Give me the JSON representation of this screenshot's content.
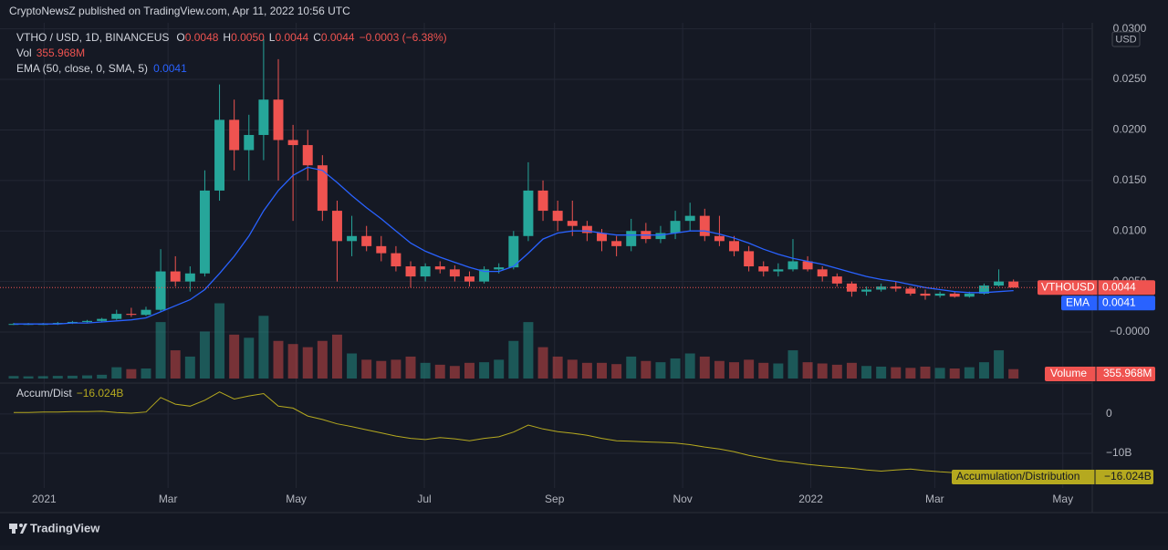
{
  "chart_data": {
    "type": "candlestick",
    "publisher": "CryptoNewsZ published on TradingView.com, Apr 11, 2022 10:56 UTC",
    "symbol": "VTHO / USD, 1D, BINANCEUS",
    "ohlc": [
      {
        "key": "O",
        "value": "0.0048"
      },
      {
        "key": "H",
        "value": "0.0050"
      },
      {
        "key": "L",
        "value": "0.0044"
      },
      {
        "key": "C",
        "value": "0.0044"
      }
    ],
    "change": "−0.0003 (−6.38%)",
    "currency": "USD",
    "price_tag": "VTHOUSD",
    "last_price": 0.0044,
    "brand": "TradingView",
    "up_color": "#26a69a",
    "down_color": "#ef5350",
    "grid": true,
    "xlim": [
      "2020-12-11",
      "2022-05-15"
    ],
    "xticks": [
      {
        "value": "2021-01-01",
        "label": "2021"
      },
      {
        "value": "2021-03-01",
        "label": "Mar"
      },
      {
        "value": "2021-05-01",
        "label": "May"
      },
      {
        "value": "2021-07-01",
        "label": "Jul"
      },
      {
        "value": "2021-09-01",
        "label": "Sep"
      },
      {
        "value": "2021-11-01",
        "label": "Nov"
      },
      {
        "value": "2022-01-01",
        "label": "2022"
      },
      {
        "value": "2022-03-01",
        "label": "Mar"
      },
      {
        "value": "2022-05-01",
        "label": "May"
      }
    ],
    "ylim": [
      -0.0046,
      0.0306
    ],
    "yticks": [
      {
        "value": 0.03,
        "label": "0.0300"
      },
      {
        "value": 0.025,
        "label": "0.0250"
      },
      {
        "value": 0.02,
        "label": "0.0200"
      },
      {
        "value": 0.015,
        "label": "0.0150"
      },
      {
        "value": 0.01,
        "label": "0.0100"
      },
      {
        "value": 0.005,
        "label": "0.0050"
      },
      {
        "value": 0,
        "label": "−0.0000"
      }
    ],
    "x": [
      "2020-12-14",
      "2020-12-21",
      "2020-12-28",
      "2021-01-04",
      "2021-01-11",
      "2021-01-18",
      "2021-01-25",
      "2021-02-01",
      "2021-02-08",
      "2021-02-15",
      "2021-02-22",
      "2021-03-01",
      "2021-03-08",
      "2021-03-15",
      "2021-03-22",
      "2021-03-29",
      "2021-04-05",
      "2021-04-12",
      "2021-04-19",
      "2021-04-26",
      "2021-05-03",
      "2021-05-10",
      "2021-05-17",
      "2021-05-24",
      "2021-05-31",
      "2021-06-07",
      "2021-06-14",
      "2021-06-21",
      "2021-06-28",
      "2021-07-05",
      "2021-07-12",
      "2021-07-19",
      "2021-07-26",
      "2021-08-02",
      "2021-08-09",
      "2021-08-16",
      "2021-08-23",
      "2021-08-30",
      "2021-09-06",
      "2021-09-13",
      "2021-09-20",
      "2021-09-27",
      "2021-10-04",
      "2021-10-11",
      "2021-10-18",
      "2021-10-25",
      "2021-11-01",
      "2021-11-08",
      "2021-11-15",
      "2021-11-22",
      "2021-11-29",
      "2021-12-06",
      "2021-12-13",
      "2021-12-20",
      "2021-12-27",
      "2022-01-03",
      "2022-01-10",
      "2022-01-17",
      "2022-01-24",
      "2022-01-31",
      "2022-02-07",
      "2022-02-14",
      "2022-02-21",
      "2022-02-28",
      "2022-03-07",
      "2022-03-14",
      "2022-03-21",
      "2022-03-28",
      "2022-04-04"
    ],
    "open": [
      0.0008,
      0.0008,
      0.0008,
      0.0008,
      0.0009,
      0.001,
      0.0011,
      0.0013,
      0.0018,
      0.0017,
      0.0022,
      0.006,
      0.005,
      0.0058,
      0.014,
      0.021,
      0.018,
      0.0195,
      0.023,
      0.019,
      0.0185,
      0.0165,
      0.012,
      0.009,
      0.0095,
      0.0085,
      0.0078,
      0.0065,
      0.0055,
      0.0065,
      0.0062,
      0.0055,
      0.005,
      0.0062,
      0.0064,
      0.0095,
      0.014,
      0.012,
      0.011,
      0.0105,
      0.0098,
      0.009,
      0.0085,
      0.01,
      0.0092,
      0.0098,
      0.011,
      0.0115,
      0.0095,
      0.009,
      0.008,
      0.0065,
      0.006,
      0.0062,
      0.007,
      0.0062,
      0.0055,
      0.0048,
      0.004,
      0.0042,
      0.0045,
      0.0043,
      0.0038,
      0.0036,
      0.0038,
      0.0035,
      0.0038,
      0.0046,
      0.005
    ],
    "high": [
      0.0009,
      0.0009,
      0.0009,
      0.001,
      0.0011,
      0.0012,
      0.0014,
      0.0022,
      0.0024,
      0.0025,
      0.0082,
      0.0075,
      0.0065,
      0.016,
      0.0245,
      0.023,
      0.0215,
      0.029,
      0.027,
      0.0205,
      0.02,
      0.0175,
      0.013,
      0.0115,
      0.0105,
      0.0095,
      0.0085,
      0.007,
      0.0068,
      0.007,
      0.0066,
      0.006,
      0.0065,
      0.0068,
      0.01,
      0.0168,
      0.015,
      0.013,
      0.013,
      0.011,
      0.0102,
      0.0095,
      0.0112,
      0.0108,
      0.0105,
      0.012,
      0.0128,
      0.0122,
      0.0115,
      0.0095,
      0.0085,
      0.007,
      0.0068,
      0.0092,
      0.0075,
      0.0065,
      0.0058,
      0.005,
      0.0045,
      0.0048,
      0.005,
      0.0045,
      0.0042,
      0.004,
      0.004,
      0.004,
      0.0048,
      0.0062,
      0.0052
    ],
    "low": [
      0.0007,
      0.0007,
      0.0007,
      0.0007,
      0.0008,
      0.0009,
      0.001,
      0.0012,
      0.0015,
      0.0016,
      0.002,
      0.0045,
      0.004,
      0.0055,
      0.013,
      0.016,
      0.015,
      0.017,
      0.015,
      0.011,
      0.015,
      0.011,
      0.005,
      0.0075,
      0.008,
      0.007,
      0.006,
      0.0044,
      0.005,
      0.0058,
      0.005,
      0.0045,
      0.0048,
      0.0058,
      0.0062,
      0.009,
      0.011,
      0.01,
      0.0095,
      0.009,
      0.008,
      0.0075,
      0.008,
      0.0088,
      0.0088,
      0.0092,
      0.01,
      0.009,
      0.0085,
      0.0075,
      0.006,
      0.0055,
      0.0055,
      0.006,
      0.006,
      0.005,
      0.0045,
      0.0035,
      0.0036,
      0.004,
      0.004,
      0.0036,
      0.0032,
      0.0034,
      0.0034,
      0.0034,
      0.0037,
      0.0045,
      0.0044
    ],
    "close": [
      0.0008,
      0.0008,
      0.0008,
      0.0009,
      0.001,
      0.0011,
      0.0013,
      0.0018,
      0.0017,
      0.0022,
      0.006,
      0.005,
      0.0058,
      0.014,
      0.021,
      0.018,
      0.0195,
      0.023,
      0.019,
      0.0185,
      0.0165,
      0.012,
      0.009,
      0.0095,
      0.0085,
      0.0078,
      0.0065,
      0.0055,
      0.0065,
      0.0062,
      0.0055,
      0.005,
      0.0062,
      0.0064,
      0.0095,
      0.014,
      0.012,
      0.011,
      0.0105,
      0.0098,
      0.009,
      0.0085,
      0.01,
      0.0092,
      0.0098,
      0.011,
      0.0115,
      0.0095,
      0.009,
      0.008,
      0.0065,
      0.006,
      0.0062,
      0.007,
      0.0062,
      0.0055,
      0.0048,
      0.004,
      0.0042,
      0.0045,
      0.0043,
      0.0038,
      0.0036,
      0.0038,
      0.0035,
      0.0038,
      0.0046,
      0.005,
      0.0044
    ],
    "volume": {
      "name": "Vol",
      "axis_tag": "Volume",
      "last": {
        "value": 355.968,
        "label": "355.968M"
      },
      "vlim": [
        0,
        16000
      ],
      "values": [
        400,
        350,
        380,
        420,
        450,
        500,
        600,
        1800,
        1500,
        1600,
        9000,
        4500,
        3500,
        7500,
        12000,
        7000,
        6500,
        10000,
        6000,
        5500,
        5000,
        6000,
        7000,
        4000,
        3000,
        2800,
        3000,
        3500,
        2500,
        2200,
        2000,
        2500,
        2600,
        3000,
        6000,
        9000,
        5000,
        3500,
        3000,
        2500,
        2500,
        2300,
        3500,
        2800,
        2600,
        3200,
        4000,
        3500,
        2800,
        2600,
        3000,
        2500,
        2400,
        4500,
        2600,
        2400,
        2200,
        2500,
        2000,
        1900,
        1800,
        1700,
        1900,
        1700,
        1600,
        1800,
        2600,
        4500,
        1500
      ]
    },
    "ema": {
      "name": "EMA (50, close, 0, SMA, 5)",
      "axis_tag": "EMA",
      "last": 0.0041,
      "color": "#2962ff",
      "values": [
        0.0008,
        0.0008,
        0.0008,
        0.0008,
        0.0009,
        0.0009,
        0.001,
        0.0011,
        0.0012,
        0.0014,
        0.002,
        0.0026,
        0.0032,
        0.0042,
        0.0058,
        0.0075,
        0.0095,
        0.012,
        0.014,
        0.0155,
        0.0163,
        0.016,
        0.0148,
        0.0135,
        0.0123,
        0.0112,
        0.01,
        0.0088,
        0.008,
        0.0074,
        0.0069,
        0.0064,
        0.006,
        0.006,
        0.0065,
        0.0078,
        0.0092,
        0.0098,
        0.01,
        0.01,
        0.0098,
        0.0096,
        0.0096,
        0.0096,
        0.0096,
        0.0098,
        0.01,
        0.01,
        0.0097,
        0.0093,
        0.0088,
        0.0082,
        0.0077,
        0.0073,
        0.007,
        0.0067,
        0.0063,
        0.0059,
        0.0055,
        0.0052,
        0.005,
        0.0047,
        0.0044,
        0.0042,
        0.004,
        0.0039,
        0.0039,
        0.004,
        0.0041
      ]
    },
    "accumulation_distribution": {
      "type": "line",
      "name": "Accum/Dist",
      "axis_tag": "Accumulation/Distribution",
      "last": {
        "value": -16.024,
        "label": "−16.024B"
      },
      "color": "#b5a91f",
      "ylim": [
        -18.8,
        6.7
      ],
      "yticks": [
        0,
        {
          "value": -10,
          "label": "−10B"
        }
      ],
      "values": [
        0.4,
        0.4,
        0.5,
        0.5,
        0.6,
        0.6,
        0.7,
        0.4,
        0.2,
        0.5,
        4.2,
        2.5,
        2.0,
        3.5,
        5.6,
        3.8,
        4.6,
        5.2,
        2.0,
        1.5,
        -0.5,
        -1.4,
        -2.5,
        -3.2,
        -4.0,
        -4.8,
        -5.6,
        -6.2,
        -6.5,
        -6.0,
        -6.3,
        -6.8,
        -6.2,
        -5.8,
        -4.6,
        -2.8,
        -3.8,
        -4.5,
        -4.9,
        -5.4,
        -6.2,
        -6.8,
        -6.9,
        -7.1,
        -7.2,
        -7.4,
        -7.8,
        -8.4,
        -8.9,
        -9.6,
        -10.5,
        -11.2,
        -11.9,
        -12.3,
        -12.8,
        -13.2,
        -13.5,
        -13.8,
        -14.2,
        -14.5,
        -14.2,
        -14.0,
        -14.4,
        -14.7,
        -14.9,
        -15.1,
        -15.3,
        -15.6,
        -16.024
      ]
    }
  }
}
